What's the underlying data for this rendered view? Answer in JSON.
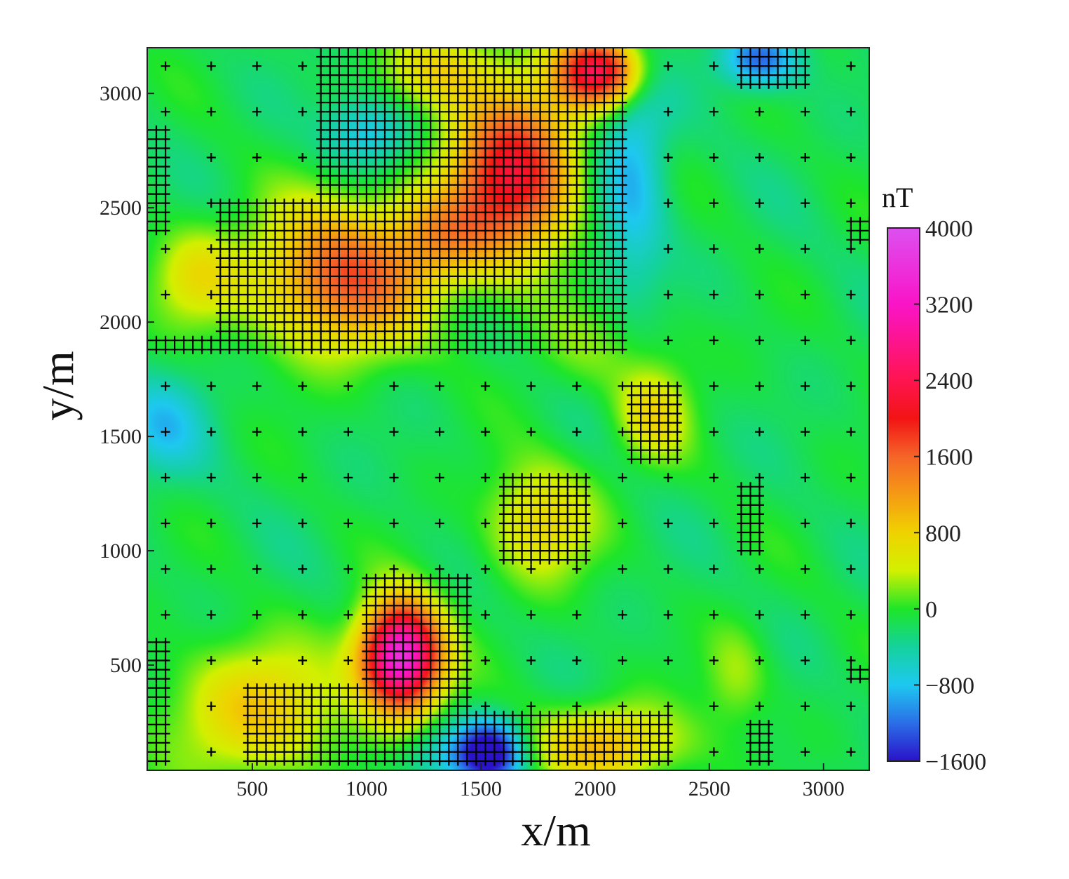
{
  "chart_data": {
    "type": "heatmap",
    "xlabel": "x/m",
    "ylabel": "y/m",
    "xlim": [
      40,
      3200
    ],
    "ylim": [
      40,
      3200
    ],
    "xticks": [
      500,
      1000,
      1500,
      2000,
      2500,
      3000
    ],
    "yticks": [
      500,
      1000,
      1500,
      2000,
      2500,
      3000
    ],
    "colorbar": {
      "unit": "nT",
      "min": -1600,
      "max": 4000,
      "ticks": [
        4000,
        3200,
        2400,
        1600,
        800,
        0,
        -800,
        -1600
      ],
      "tick_labels": [
        "4000",
        "3200",
        "2400",
        "1600",
        "800",
        "0",
        "−800",
        "−1600"
      ],
      "stops": [
        {
          "value": -1600,
          "color": "#2a12c8"
        },
        {
          "value": -1200,
          "color": "#2a6ee8"
        },
        {
          "value": -800,
          "color": "#1ec8f0"
        },
        {
          "value": -400,
          "color": "#14d29c"
        },
        {
          "value": 0,
          "color": "#1ee628"
        },
        {
          "value": 400,
          "color": "#d2f000"
        },
        {
          "value": 800,
          "color": "#f0d200"
        },
        {
          "value": 1200,
          "color": "#f59a14"
        },
        {
          "value": 1600,
          "color": "#f56428"
        },
        {
          "value": 2000,
          "color": "#f21414"
        },
        {
          "value": 2400,
          "color": "#ff1450"
        },
        {
          "value": 3200,
          "color": "#fa14c8"
        },
        {
          "value": 4000,
          "color": "#dc50f0"
        }
      ]
    },
    "background_value": -150,
    "anomalies": [
      {
        "x": 900,
        "y": 2200,
        "amplitude": 1800,
        "sx": 260,
        "sy": 220
      },
      {
        "x": 1640,
        "y": 2650,
        "amplitude": 2300,
        "sx": 190,
        "sy": 260
      },
      {
        "x": 2020,
        "y": 3100,
        "amplitude": 2500,
        "sx": 130,
        "sy": 110
      },
      {
        "x": 1150,
        "y": 540,
        "amplitude": 3900,
        "sx": 120,
        "sy": 160
      },
      {
        "x": 520,
        "y": 300,
        "amplitude": 1000,
        "sx": 260,
        "sy": 200
      },
      {
        "x": 2050,
        "y": 150,
        "amplitude": 1100,
        "sx": 230,
        "sy": 120
      },
      {
        "x": 1760,
        "y": 1130,
        "amplitude": 900,
        "sx": 160,
        "sy": 180
      },
      {
        "x": 2250,
        "y": 1600,
        "amplitude": 800,
        "sx": 110,
        "sy": 140
      },
      {
        "x": 250,
        "y": 2200,
        "amplitude": 700,
        "sx": 140,
        "sy": 150
      },
      {
        "x": 1320,
        "y": 2380,
        "amplitude": 850,
        "sx": 150,
        "sy": 140
      },
      {
        "x": 1330,
        "y": 3100,
        "amplitude": 800,
        "sx": 170,
        "sy": 120
      },
      {
        "x": 1540,
        "y": 120,
        "amplitude": -1600,
        "sx": 100,
        "sy": 100
      },
      {
        "x": 2160,
        "y": 2650,
        "amplitude": -750,
        "sx": 110,
        "sy": 400
      },
      {
        "x": 2720,
        "y": 3150,
        "amplitude": -1100,
        "sx": 120,
        "sy": 90
      },
      {
        "x": 1000,
        "y": 2830,
        "amplitude": -700,
        "sx": 130,
        "sy": 110
      },
      {
        "x": 100,
        "y": 1550,
        "amplitude": -600,
        "sx": 140,
        "sy": 160
      },
      {
        "x": 1330,
        "y": 100,
        "amplitude": -500,
        "sx": 130,
        "sy": 90
      },
      {
        "x": 2620,
        "y": 450,
        "amplitude": 450,
        "sx": 100,
        "sy": 160
      },
      {
        "x": 2070,
        "y": 1900,
        "amplitude": 300,
        "sx": 250,
        "sy": 150
      }
    ],
    "station_grid": {
      "coarse_spacing": 200,
      "dense_spacing": 40,
      "coarse_x": [
        120,
        320,
        520,
        720,
        920,
        1120,
        1320,
        1520,
        1720,
        1920,
        2120,
        2320,
        2520,
        2720,
        2920,
        3120
      ],
      "coarse_y": [
        120,
        320,
        520,
        720,
        920,
        1120,
        1320,
        1520,
        1720,
        1920,
        2120,
        2320,
        2520,
        2720,
        2920,
        3120
      ],
      "dense_regions": [
        {
          "x": [
            780,
            2150
          ],
          "y": [
            1850,
            3200
          ]
        },
        {
          "x": [
            350,
            1170
          ],
          "y": [
            1850,
            2550
          ]
        },
        {
          "x": [
            40,
            400
          ],
          "y": [
            1850,
            1950
          ]
        },
        {
          "x": [
            40,
            120
          ],
          "y": [
            2400,
            2850
          ]
        },
        {
          "x": [
            980,
            1450
          ],
          "y": [
            50,
            900
          ]
        },
        {
          "x": [
            480,
            1000
          ],
          "y": [
            50,
            420
          ]
        },
        {
          "x": [
            40,
            120
          ],
          "y": [
            50,
            600
          ]
        },
        {
          "x": [
            1430,
            2350
          ],
          "y": [
            50,
            280
          ]
        },
        {
          "x": [
            1600,
            1980
          ],
          "y": [
            930,
            1330
          ]
        },
        {
          "x": [
            2160,
            2380
          ],
          "y": [
            1400,
            1750
          ]
        },
        {
          "x": [
            2620,
            2720
          ],
          "y": [
            1000,
            1300
          ]
        },
        {
          "x": [
            2650,
            2780
          ],
          "y": [
            50,
            250
          ]
        },
        {
          "x": [
            2620,
            2950
          ],
          "y": [
            3020,
            3200
          ]
        },
        {
          "x": [
            3100,
            3200
          ],
          "y": [
            2360,
            2460
          ]
        },
        {
          "x": [
            3100,
            3200
          ],
          "y": [
            410,
            500
          ]
        }
      ]
    }
  }
}
